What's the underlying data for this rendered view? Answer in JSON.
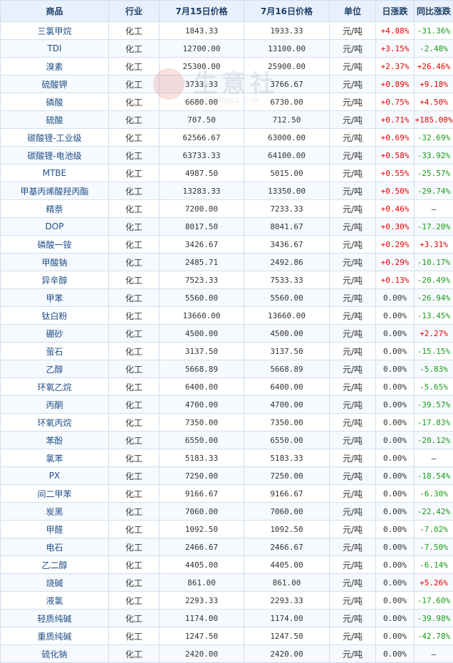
{
  "table": {
    "headers": [
      "商品",
      "行业",
      "7月15日价格",
      "7月16日价格",
      "单位",
      "日涨跌",
      "同比涨跌"
    ],
    "rows": [
      {
        "name": "三氯甲烷",
        "industry": "化工",
        "p1": "1843.33",
        "p2": "1933.33",
        "unit": "元/吨",
        "day": "+4.88%",
        "yoy": "-31.36%"
      },
      {
        "name": "TDI",
        "industry": "化工",
        "p1": "12700.00",
        "p2": "13100.00",
        "unit": "元/吨",
        "day": "+3.15%",
        "yoy": "-2.48%"
      },
      {
        "name": "溴素",
        "industry": "化工",
        "p1": "25300.00",
        "p2": "25900.00",
        "unit": "元/吨",
        "day": "+2.37%",
        "yoy": "+26.46%"
      },
      {
        "name": "硫酸钾",
        "industry": "化工",
        "p1": "3733.33",
        "p2": "3766.67",
        "unit": "元/吨",
        "day": "+0.89%",
        "yoy": "+9.18%"
      },
      {
        "name": "磷酸",
        "industry": "化工",
        "p1": "6680.00",
        "p2": "6730.00",
        "unit": "元/吨",
        "day": "+0.75%",
        "yoy": "+4.50%"
      },
      {
        "name": "硫酸",
        "industry": "化工",
        "p1": "707.50",
        "p2": "712.50",
        "unit": "元/吨",
        "day": "+0.71%",
        "yoy": "+185.00%"
      },
      {
        "name": "碳酸锂-工业级",
        "industry": "化工",
        "p1": "62566.67",
        "p2": "63000.00",
        "unit": "元/吨",
        "day": "+0.69%",
        "yoy": "-32.69%"
      },
      {
        "name": "碳酸锂-电池级",
        "industry": "化工",
        "p1": "63733.33",
        "p2": "64100.00",
        "unit": "元/吨",
        "day": "+0.58%",
        "yoy": "-33.92%"
      },
      {
        "name": "MTBE",
        "industry": "化工",
        "p1": "4987.50",
        "p2": "5015.00",
        "unit": "元/吨",
        "day": "+0.55%",
        "yoy": "-25.57%"
      },
      {
        "name": "甲基丙烯酸羟丙酯",
        "industry": "化工",
        "p1": "13283.33",
        "p2": "13350.00",
        "unit": "元/吨",
        "day": "+0.50%",
        "yoy": "-29.74%"
      },
      {
        "name": "精萘",
        "industry": "化工",
        "p1": "7200.00",
        "p2": "7233.33",
        "unit": "元/吨",
        "day": "+0.46%",
        "yoy": "—"
      },
      {
        "name": "DOP",
        "industry": "化工",
        "p1": "8017.50",
        "p2": "8041.67",
        "unit": "元/吨",
        "day": "+0.30%",
        "yoy": "-17.20%"
      },
      {
        "name": "磷酸一铵",
        "industry": "化工",
        "p1": "3426.67",
        "p2": "3436.67",
        "unit": "元/吨",
        "day": "+0.29%",
        "yoy": "+3.31%"
      },
      {
        "name": "甲酸钠",
        "industry": "化工",
        "p1": "2485.71",
        "p2": "2492.86",
        "unit": "元/吨",
        "day": "+0.29%",
        "yoy": "-10.17%"
      },
      {
        "name": "异辛醇",
        "industry": "化工",
        "p1": "7523.33",
        "p2": "7533.33",
        "unit": "元/吨",
        "day": "+0.13%",
        "yoy": "-20.49%"
      },
      {
        "name": "甲苯",
        "industry": "化工",
        "p1": "5560.00",
        "p2": "5560.00",
        "unit": "元/吨",
        "day": "0.00%",
        "yoy": "-26.94%"
      },
      {
        "name": "钛白粉",
        "industry": "化工",
        "p1": "13660.00",
        "p2": "13660.00",
        "unit": "元/吨",
        "day": "0.00%",
        "yoy": "-13.45%"
      },
      {
        "name": "硼砂",
        "industry": "化工",
        "p1": "4500.00",
        "p2": "4500.00",
        "unit": "元/吨",
        "day": "0.00%",
        "yoy": "+2.27%"
      },
      {
        "name": "萤石",
        "industry": "化工",
        "p1": "3137.50",
        "p2": "3137.50",
        "unit": "元/吨",
        "day": "0.00%",
        "yoy": "-15.15%"
      },
      {
        "name": "乙醇",
        "industry": "化工",
        "p1": "5668.89",
        "p2": "5668.89",
        "unit": "元/吨",
        "day": "0.00%",
        "yoy": "-5.83%"
      },
      {
        "name": "环氧乙烷",
        "industry": "化工",
        "p1": "6400.00",
        "p2": "6400.00",
        "unit": "元/吨",
        "day": "0.00%",
        "yoy": "-5.65%"
      },
      {
        "name": "丙酮",
        "industry": "化工",
        "p1": "4700.00",
        "p2": "4700.00",
        "unit": "元/吨",
        "day": "0.00%",
        "yoy": "-39.57%"
      },
      {
        "name": "环氧丙烷",
        "industry": "化工",
        "p1": "7350.00",
        "p2": "7350.00",
        "unit": "元/吨",
        "day": "0.00%",
        "yoy": "-17.83%"
      },
      {
        "name": "苯酚",
        "industry": "化工",
        "p1": "6550.00",
        "p2": "6550.00",
        "unit": "元/吨",
        "day": "0.00%",
        "yoy": "-20.12%"
      },
      {
        "name": "氯苯",
        "industry": "化工",
        "p1": "5183.33",
        "p2": "5183.33",
        "unit": "元/吨",
        "day": "0.00%",
        "yoy": "—"
      },
      {
        "name": "PX",
        "industry": "化工",
        "p1": "7250.00",
        "p2": "7250.00",
        "unit": "元/吨",
        "day": "0.00%",
        "yoy": "-18.54%"
      },
      {
        "name": "间二甲苯",
        "industry": "化工",
        "p1": "9166.67",
        "p2": "9166.67",
        "unit": "元/吨",
        "day": "0.00%",
        "yoy": "-6.30%"
      },
      {
        "name": "炭黑",
        "industry": "化工",
        "p1": "7060.00",
        "p2": "7060.00",
        "unit": "元/吨",
        "day": "0.00%",
        "yoy": "-22.42%"
      },
      {
        "name": "甲醛",
        "industry": "化工",
        "p1": "1092.50",
        "p2": "1092.50",
        "unit": "元/吨",
        "day": "0.00%",
        "yoy": "-7.02%"
      },
      {
        "name": "电石",
        "industry": "化工",
        "p1": "2466.67",
        "p2": "2466.67",
        "unit": "元/吨",
        "day": "0.00%",
        "yoy": "-7.50%"
      },
      {
        "name": "乙二醇",
        "industry": "化工",
        "p1": "4405.00",
        "p2": "4405.00",
        "unit": "元/吨",
        "day": "0.00%",
        "yoy": "-6.14%"
      },
      {
        "name": "烧碱",
        "industry": "化工",
        "p1": "861.00",
        "p2": "861.00",
        "unit": "元/吨",
        "day": "0.00%",
        "yoy": "+5.26%"
      },
      {
        "name": "液氯",
        "industry": "化工",
        "p1": "2293.33",
        "p2": "2293.33",
        "unit": "元/吨",
        "day": "0.00%",
        "yoy": "-17.60%"
      },
      {
        "name": "轻质纯碱",
        "industry": "化工",
        "p1": "1174.00",
        "p2": "1174.00",
        "unit": "元/吨",
        "day": "0.00%",
        "yoy": "-39.98%"
      },
      {
        "name": "重质纯碱",
        "industry": "化工",
        "p1": "1247.50",
        "p2": "1247.50",
        "unit": "元/吨",
        "day": "0.00%",
        "yoy": "-42.78%"
      },
      {
        "name": "硫化钠",
        "industry": "化工",
        "p1": "2420.00",
        "p2": "2420.00",
        "unit": "元/吨",
        "day": "0.00%",
        "yoy": "—"
      }
    ]
  },
  "watermark": {
    "text": "生意社",
    "url": "www.100ppi.com"
  },
  "colors": {
    "up": "#e60000",
    "down": "#1a9a1a",
    "header_bg": "#e7f0fb",
    "border": "#cfe0ef",
    "name_text": "#1f4f86"
  }
}
